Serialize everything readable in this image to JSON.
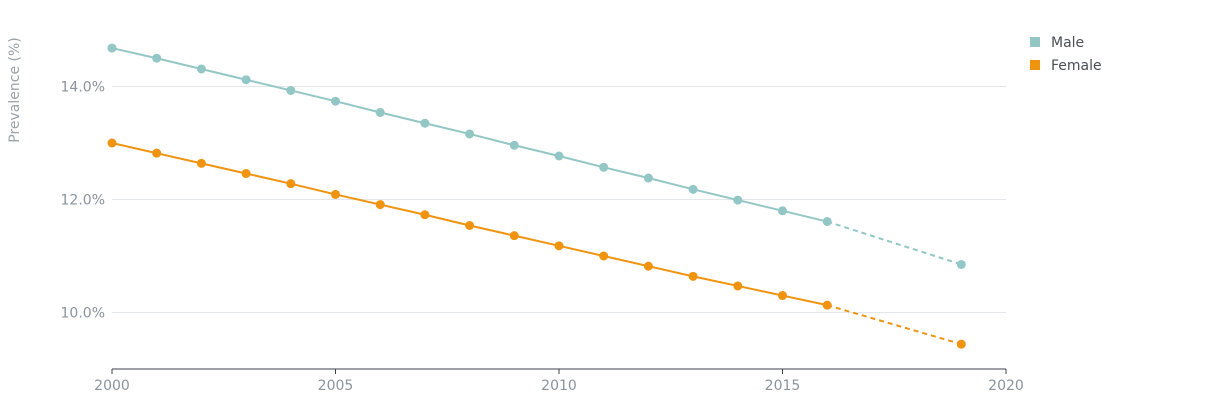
{
  "chart_data": {
    "type": "line",
    "title": "",
    "xlabel": "",
    "ylabel": "Prevalence (%)",
    "xlim": [
      2000,
      2020
    ],
    "ylim": [
      9.0,
      15.0
    ],
    "x_ticks": [
      2000,
      2005,
      2010,
      2015,
      2020
    ],
    "x_tick_labels": [
      "2000",
      "2005",
      "2010",
      "2015",
      "2020"
    ],
    "y_ticks": [
      10,
      12,
      14
    ],
    "y_tick_labels": [
      "10.0%",
      "12.0%",
      "14.0%"
    ],
    "grid": "horizontal",
    "legend_position": "top-right",
    "x": [
      2000,
      2001,
      2002,
      2003,
      2004,
      2005,
      2006,
      2007,
      2008,
      2009,
      2010,
      2011,
      2012,
      2013,
      2014,
      2015,
      2016,
      2019
    ],
    "projection_start_x": 2016,
    "series": [
      {
        "name": "Male",
        "color": "#93c7c5",
        "values": [
          14.68,
          14.5,
          14.31,
          14.12,
          13.93,
          13.74,
          13.54,
          13.35,
          13.16,
          12.96,
          12.77,
          12.57,
          12.38,
          12.18,
          11.99,
          11.8,
          11.61,
          10.85
        ]
      },
      {
        "name": "Female",
        "color": "#f0930f",
        "values": [
          13.0,
          12.82,
          12.64,
          12.46,
          12.28,
          12.09,
          11.91,
          11.73,
          11.54,
          11.36,
          11.18,
          11.0,
          10.82,
          10.64,
          10.47,
          10.3,
          10.13,
          9.44
        ]
      }
    ]
  }
}
